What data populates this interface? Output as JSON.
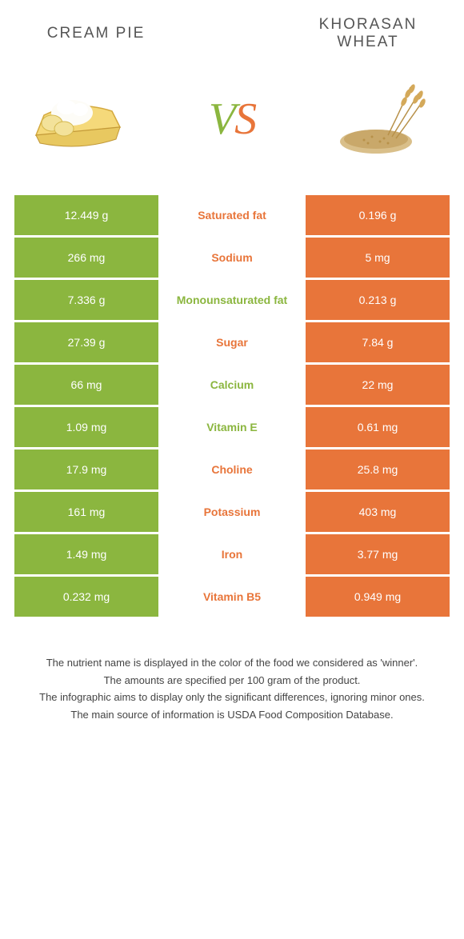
{
  "header": {
    "left_title": "Cream Pie",
    "right_title": "Khorasan Wheat",
    "vs_left": "V",
    "vs_right": "S"
  },
  "colors": {
    "green": "#8bb63f",
    "orange": "#e8753a",
    "white": "#ffffff"
  },
  "rows": [
    {
      "left": "12.449 g",
      "label": "Saturated fat",
      "right": "0.196 g",
      "winner": "orange"
    },
    {
      "left": "266 mg",
      "label": "Sodium",
      "right": "5 mg",
      "winner": "orange"
    },
    {
      "left": "7.336 g",
      "label": "Monounsaturated fat",
      "right": "0.213 g",
      "winner": "green"
    },
    {
      "left": "27.39 g",
      "label": "Sugar",
      "right": "7.84 g",
      "winner": "orange"
    },
    {
      "left": "66 mg",
      "label": "Calcium",
      "right": "22 mg",
      "winner": "green"
    },
    {
      "left": "1.09 mg",
      "label": "Vitamin E",
      "right": "0.61 mg",
      "winner": "green"
    },
    {
      "left": "17.9 mg",
      "label": "Choline",
      "right": "25.8 mg",
      "winner": "orange"
    },
    {
      "left": "161 mg",
      "label": "Potassium",
      "right": "403 mg",
      "winner": "orange"
    },
    {
      "left": "1.49 mg",
      "label": "Iron",
      "right": "3.77 mg",
      "winner": "orange"
    },
    {
      "left": "0.232 mg",
      "label": "Vitamin B5",
      "right": "0.949 mg",
      "winner": "orange"
    }
  ],
  "footnotes": [
    "The nutrient name is displayed in the color of the food we considered as 'winner'.",
    "The amounts are specified per 100 gram of the product.",
    "The infographic aims to display only the significant differences, ignoring minor ones.",
    "The main source of information is USDA Food Composition Database."
  ]
}
